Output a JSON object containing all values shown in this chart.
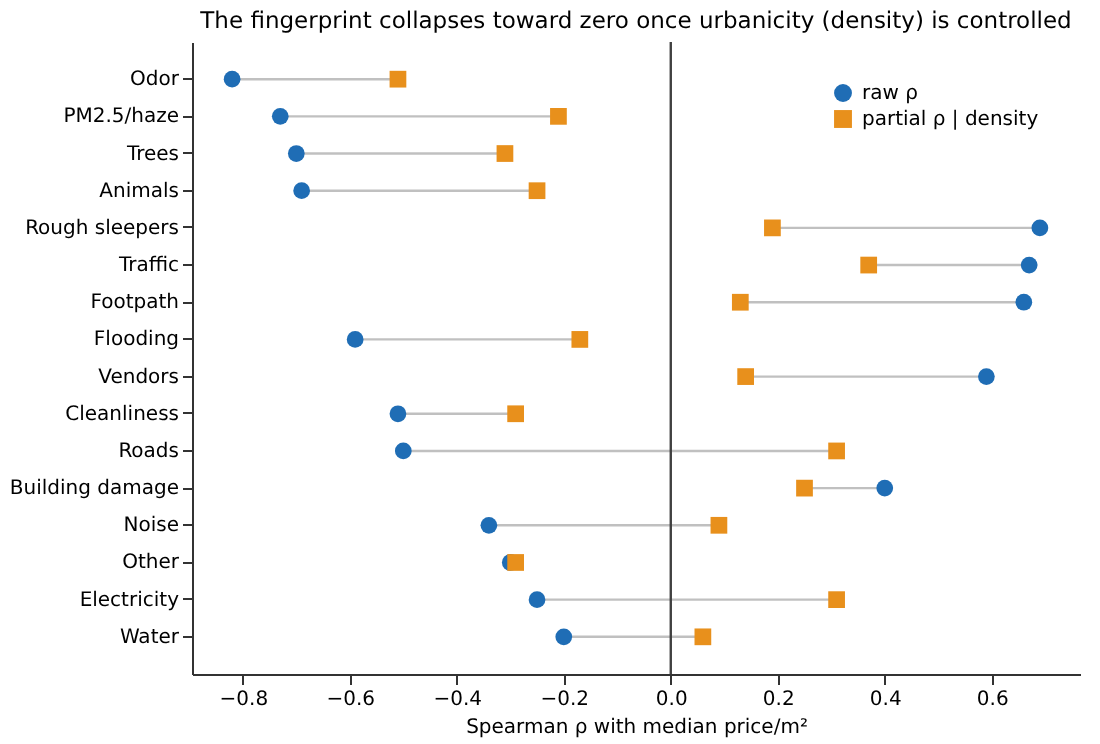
{
  "chart_data": {
    "type": "scatter",
    "title": "The fingerprint collapses toward zero once urbanicity (density) is controlled",
    "xlabel": "Spearman ρ with median price/m²",
    "orientation": "horizontal",
    "categories": [
      "Odor",
      "PM2.5/haze",
      "Trees",
      "Animals",
      "Rough sleepers",
      "Traffic",
      "Footpath",
      "Flooding",
      "Vendors",
      "Cleanliness",
      "Roads",
      "Building damage",
      "Noise",
      "Other",
      "Electricity",
      "Water"
    ],
    "series": [
      {
        "name": "raw ρ",
        "color": "#1f6db5",
        "marker": "circle",
        "values": [
          -0.82,
          -0.73,
          -0.7,
          -0.69,
          0.69,
          0.67,
          0.66,
          -0.59,
          0.59,
          -0.51,
          -0.5,
          0.4,
          -0.34,
          -0.3,
          -0.25,
          -0.2
        ]
      },
      {
        "name": "partial ρ | density",
        "color": "#e8901c",
        "marker": "square",
        "values": [
          -0.51,
          -0.21,
          -0.31,
          -0.25,
          0.19,
          0.37,
          0.13,
          -0.17,
          0.14,
          -0.29,
          0.31,
          0.25,
          0.09,
          -0.29,
          0.31,
          0.06
        ]
      }
    ],
    "xlim": [
      -0.895,
      0.765
    ],
    "xticks": [
      -0.8,
      -0.6,
      -0.4,
      -0.2,
      {
        "value": 0,
        "label": "0.0"
      },
      0.2,
      0.4,
      0.6
    ],
    "ref_lines": [
      {
        "axis": "x",
        "value": 0,
        "color": "#404040"
      }
    ],
    "grid": false,
    "legend": "top right"
  }
}
